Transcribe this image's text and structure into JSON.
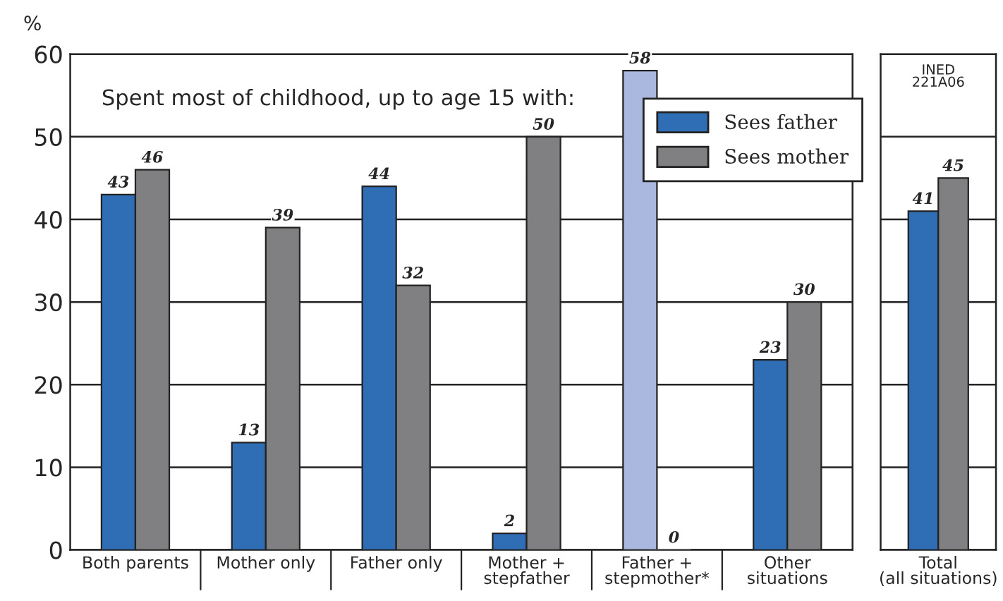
{
  "chart_data": [
    {
      "type": "bar",
      "ylabel": "%",
      "categories": [
        "Both parents",
        "Mother only",
        "Father only",
        "Mother +\nstepfather",
        "Father +\nstepmother*",
        "Other\nsituations"
      ],
      "series": [
        {
          "name": "Sees father",
          "color": "#2f6db5",
          "colors": [
            "#2f6db5",
            "#2f6db5",
            "#2f6db5",
            "#2f6db5",
            "#aab8e0",
            "#2f6db5"
          ],
          "values": [
            43,
            13,
            44,
            2,
            58,
            23
          ]
        },
        {
          "name": "Sees mother",
          "color": "#808083",
          "values": [
            46,
            39,
            32,
            50,
            0,
            30
          ]
        }
      ],
      "ylim": [
        0,
        60
      ],
      "yticks": [
        0,
        10,
        20,
        30,
        40,
        50,
        60
      ],
      "grid": "y",
      "legend": "top right",
      "data_labels": true,
      "annotations": [
        "Spent most of childhood, up to age 15 with:"
      ]
    },
    {
      "type": "bar",
      "categories": [
        "Total\n(all situations)"
      ],
      "series": [
        {
          "color": "#2f6db5",
          "values": [
            41
          ]
        },
        {
          "color": "#808083",
          "values": [
            45
          ]
        }
      ],
      "ylim": [
        0,
        60
      ],
      "yticks": [
        0,
        10,
        20,
        30,
        40,
        50,
        60
      ],
      "grid": "y",
      "tick_labels": "x",
      "data_labels": true,
      "annotations": [
        "INED\n221A06"
      ]
    }
  ]
}
